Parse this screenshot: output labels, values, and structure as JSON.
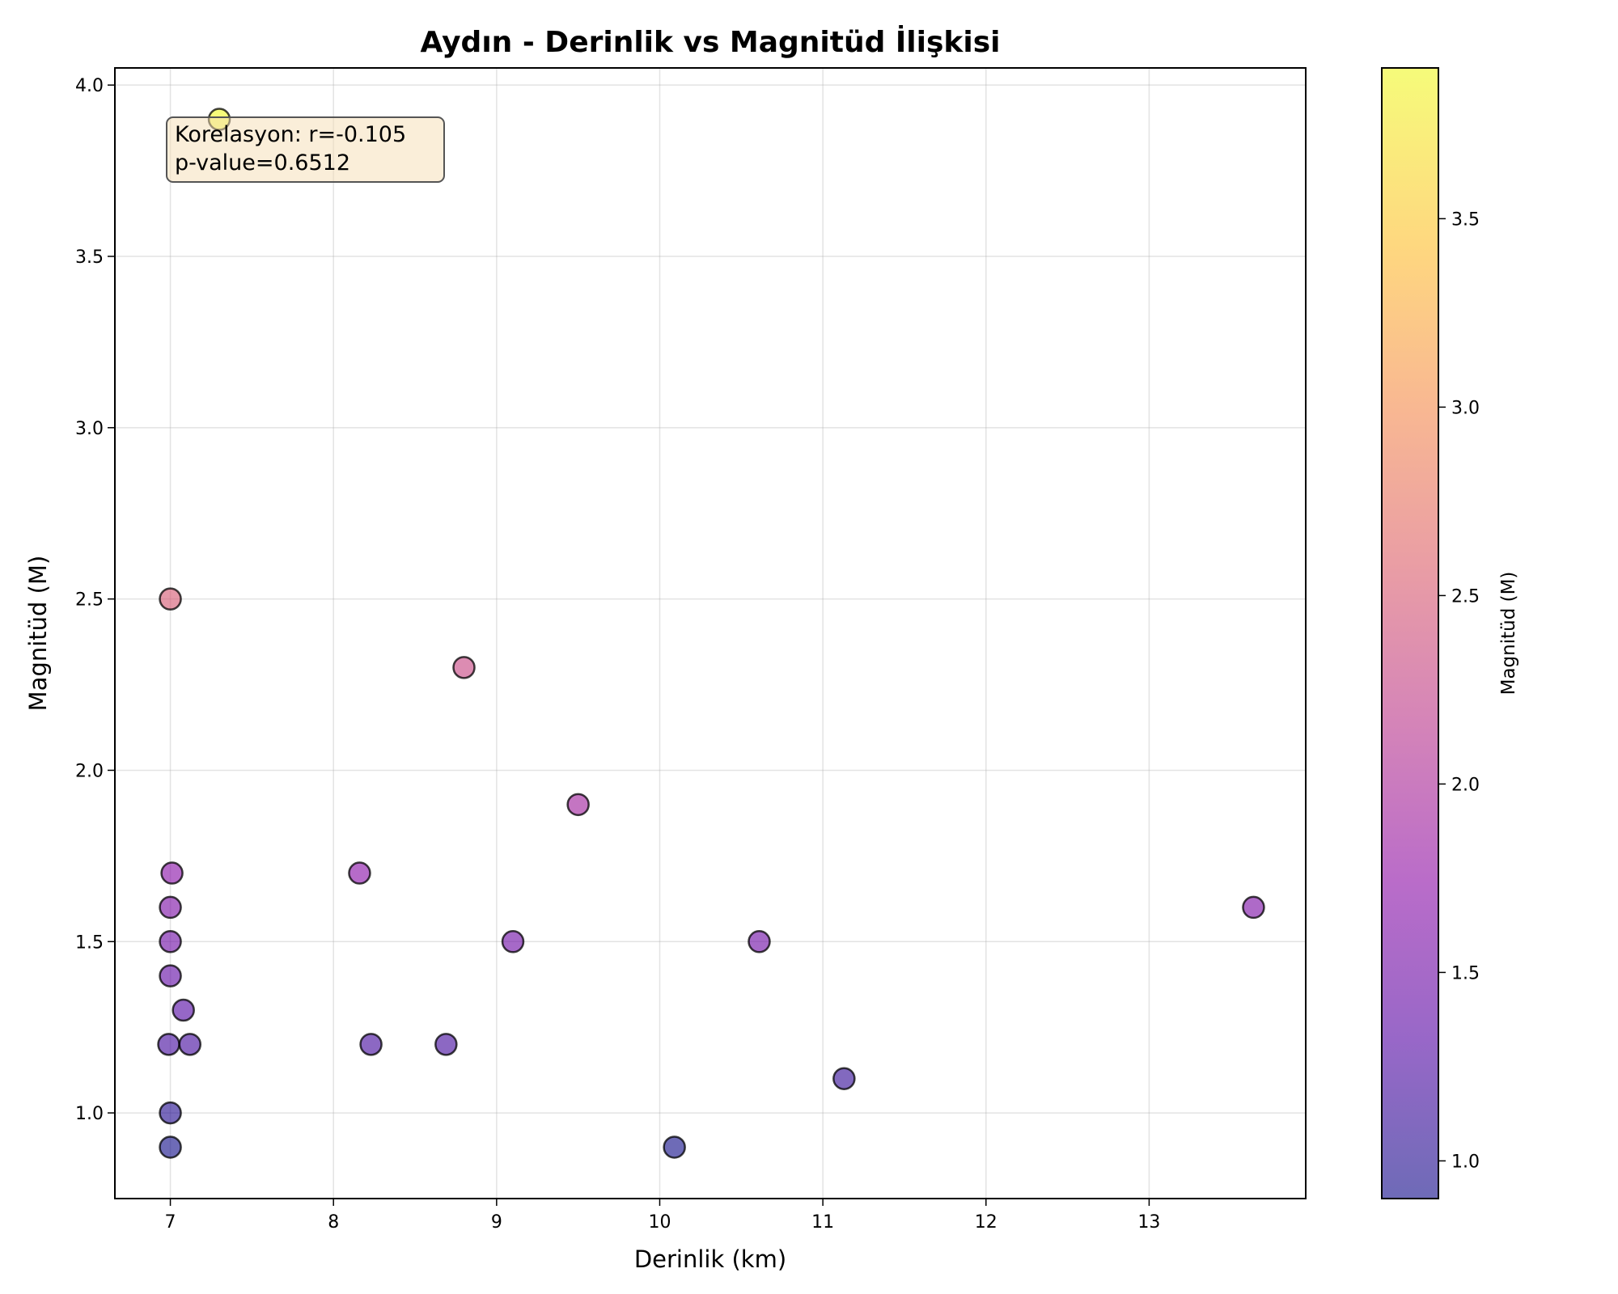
{
  "chart_data": {
    "type": "scatter",
    "title": "Aydın - Derinlik vs Magnitüd İlişkisi",
    "xlabel": "Derinlik (km)",
    "ylabel": "Magnitüd (M)",
    "xlim": [
      6.66,
      13.96
    ],
    "ylim": [
      0.75,
      4.05
    ],
    "xticks": [
      7,
      8,
      9,
      10,
      11,
      12,
      13
    ],
    "yticks": [
      1.0,
      1.5,
      2.0,
      2.5,
      3.0,
      3.5,
      4.0
    ],
    "grid": true,
    "colormap": "plasma",
    "colorbar": {
      "label": "Magnitüd (M)",
      "range": [
        0.9,
        3.9
      ],
      "ticks": [
        1.0,
        1.5,
        2.0,
        2.5,
        3.0,
        3.5
      ]
    },
    "annotation": {
      "line1": "Korelasyon: r=-0.105",
      "line2": "p-value=0.6512"
    },
    "points": [
      {
        "x": 7.3,
        "y": 3.9
      },
      {
        "x": 7.0,
        "y": 2.5
      },
      {
        "x": 8.8,
        "y": 2.3
      },
      {
        "x": 9.5,
        "y": 1.9
      },
      {
        "x": 7.01,
        "y": 1.7
      },
      {
        "x": 8.16,
        "y": 1.7
      },
      {
        "x": 7.0,
        "y": 1.6
      },
      {
        "x": 13.64,
        "y": 1.6
      },
      {
        "x": 7.0,
        "y": 1.5
      },
      {
        "x": 9.1,
        "y": 1.5
      },
      {
        "x": 10.61,
        "y": 1.5
      },
      {
        "x": 7.0,
        "y": 1.4
      },
      {
        "x": 7.08,
        "y": 1.3
      },
      {
        "x": 6.99,
        "y": 1.2
      },
      {
        "x": 7.12,
        "y": 1.2
      },
      {
        "x": 8.23,
        "y": 1.2
      },
      {
        "x": 8.69,
        "y": 1.2
      },
      {
        "x": 11.13,
        "y": 1.1
      },
      {
        "x": 7.0,
        "y": 1.0
      },
      {
        "x": 7.0,
        "y": 0.9
      },
      {
        "x": 10.09,
        "y": 0.9
      }
    ]
  }
}
